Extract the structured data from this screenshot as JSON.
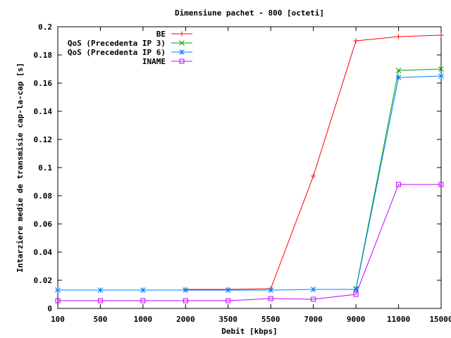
{
  "chart_data": {
    "type": "line",
    "title": "Dimensiune pachet - 800 [octeti]",
    "xlabel": "Debit [kbps]",
    "ylabel": "Intarziere medie de transmisie cap-la-cap [s]",
    "categories": [
      "100",
      "500",
      "1000",
      "2000",
      "3500",
      "5500",
      "7000",
      "9000",
      "11000",
      "15000"
    ],
    "ylim": [
      0,
      0.2
    ],
    "yticks": [
      "0",
      "0.02",
      "0.04",
      "0.06",
      "0.08",
      "0.1",
      "0.12",
      "0.14",
      "0.16",
      "0.18",
      "0.2"
    ],
    "grid": false,
    "legend_position": "top-right",
    "series": [
      {
        "name": "BE",
        "color": "#ff0000",
        "marker": "plus",
        "values": [
          null,
          null,
          null,
          0.0135,
          0.0135,
          0.014,
          0.094,
          0.19,
          0.193,
          0.194
        ]
      },
      {
        "name": "QoS (Precedenta IP 3)",
        "color": "#00a000",
        "marker": "cross",
        "values": [
          null,
          null,
          null,
          null,
          null,
          null,
          null,
          0.014,
          0.169,
          0.17
        ]
      },
      {
        "name": "QoS (Precedenta IP 6)",
        "color": "#0080ff",
        "marker": "star",
        "values": [
          0.013,
          0.013,
          0.013,
          0.013,
          0.013,
          0.013,
          0.0135,
          0.0135,
          0.164,
          0.165
        ]
      },
      {
        "name": "INAME",
        "color": "#c000ff",
        "marker": "square",
        "values": [
          0.0055,
          0.0055,
          0.0055,
          0.0055,
          0.0055,
          0.007,
          0.0065,
          0.01,
          0.088,
          0.088
        ]
      }
    ]
  }
}
